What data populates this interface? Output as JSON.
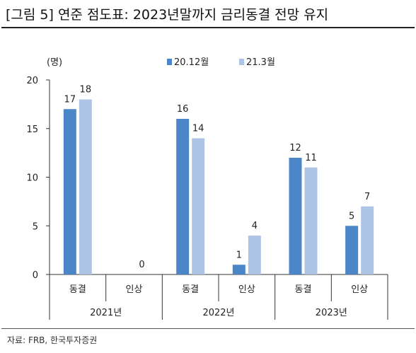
{
  "title": "[그림 5] 연준 점도표: 2023년말까지 금리동결 전망 유지",
  "source": "자료: FRB, 한국투자증권",
  "chart_data": {
    "type": "bar",
    "ylabel": "(명)",
    "ylim": [
      0,
      20
    ],
    "yticks": [
      0,
      5,
      10,
      15,
      20
    ],
    "categories": [
      "동결",
      "인상",
      "동결",
      "인상",
      "동결",
      "인상"
    ],
    "groups": [
      {
        "label": "2021년",
        "categories": [
          "동결",
          "인상"
        ]
      },
      {
        "label": "2022년",
        "categories": [
          "동결",
          "인상"
        ]
      },
      {
        "label": "2023년",
        "categories": [
          "동결",
          "인상"
        ]
      }
    ],
    "series": [
      {
        "name": "20.12월",
        "color": "#4a86c8",
        "values": [
          17,
          0,
          16,
          1,
          12,
          5
        ]
      },
      {
        "name": "21.3월",
        "color": "#aec4e6",
        "values": [
          18,
          0,
          14,
          4,
          11,
          7
        ]
      }
    ],
    "data_labels": [
      {
        "category_index": 0,
        "series_index": 0,
        "text": "17"
      },
      {
        "category_index": 0,
        "series_index": 1,
        "text": "18"
      },
      {
        "category_index": 1,
        "series_index": 1,
        "text": "0"
      },
      {
        "category_index": 2,
        "series_index": 0,
        "text": "16"
      },
      {
        "category_index": 2,
        "series_index": 1,
        "text": "14"
      },
      {
        "category_index": 3,
        "series_index": 0,
        "text": "1"
      },
      {
        "category_index": 3,
        "series_index": 1,
        "text": "4"
      },
      {
        "category_index": 4,
        "series_index": 0,
        "text": "12"
      },
      {
        "category_index": 4,
        "series_index": 1,
        "text": "11"
      },
      {
        "category_index": 5,
        "series_index": 0,
        "text": "5"
      },
      {
        "category_index": 5,
        "series_index": 1,
        "text": "7"
      }
    ],
    "legend_position": "top-center",
    "grid": false
  }
}
